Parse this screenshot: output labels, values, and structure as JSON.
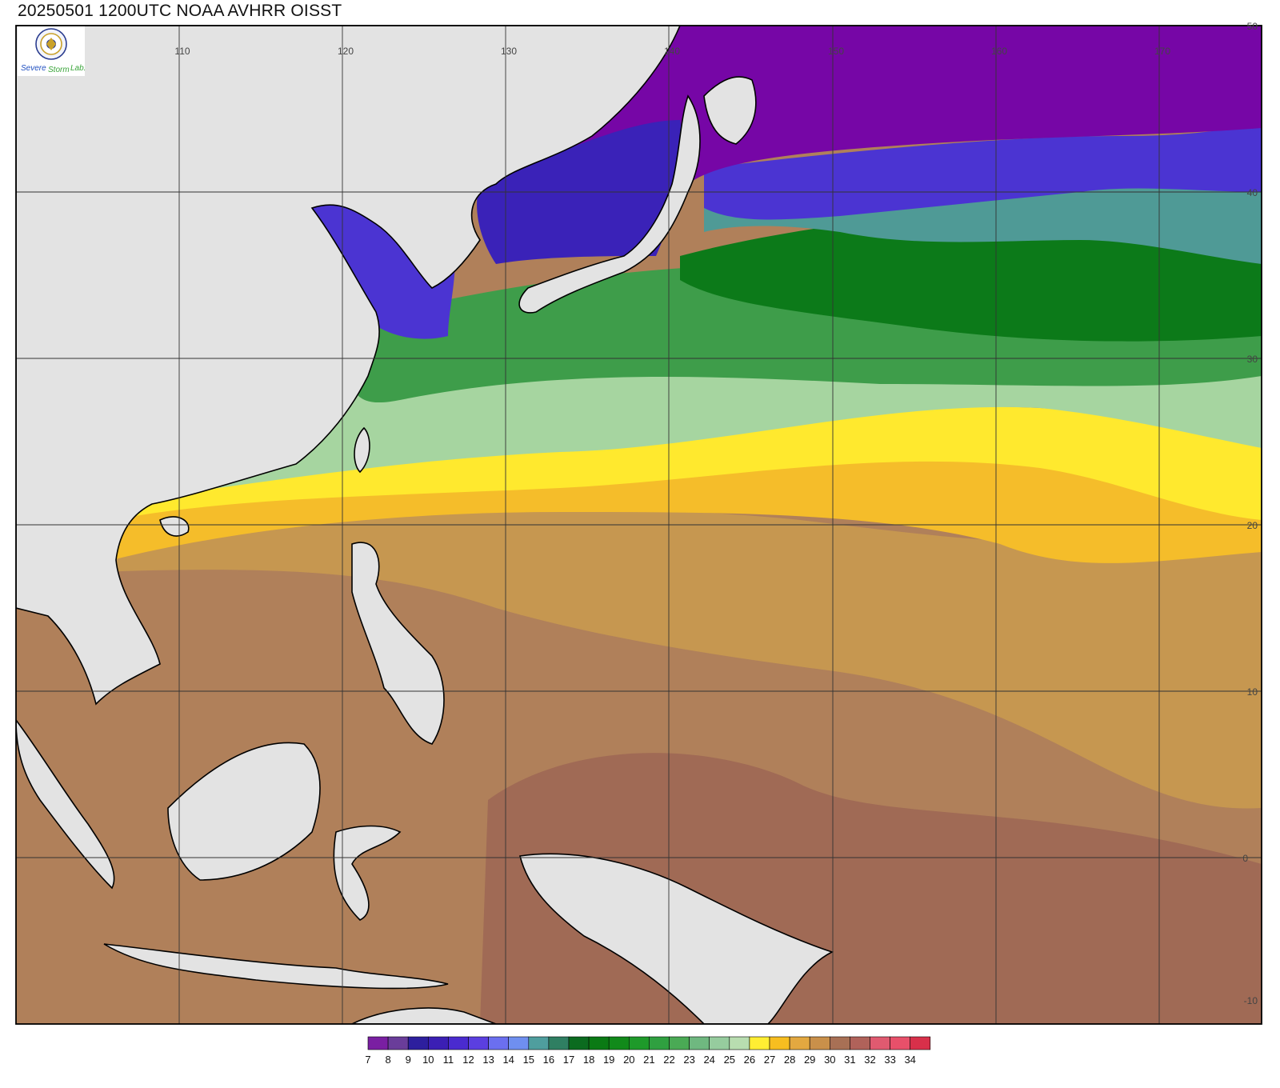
{
  "title": "20250501 1200UTC NOAA AVHRR OISST",
  "logo": {
    "name": "severe-storm-lab-logo",
    "text": "Severe Storm Lab."
  },
  "map": {
    "lon_labels": [
      "110",
      "120",
      "130",
      "140",
      "150",
      "160",
      "170"
    ],
    "lat_labels": [
      "50",
      "40",
      "30",
      "20",
      "10",
      "0",
      "-10"
    ],
    "lon_range": [
      100,
      175
    ],
    "lat_range": [
      -10,
      50
    ]
  },
  "colorbar": {
    "labels": [
      "7",
      "8",
      "9",
      "10",
      "11",
      "12",
      "13",
      "14",
      "15",
      "16",
      "17",
      "18",
      "19",
      "20",
      "21",
      "22",
      "23",
      "24",
      "25",
      "26",
      "27",
      "28",
      "29",
      "30",
      "31",
      "32",
      "33",
      "34"
    ],
    "colors": [
      "#7a1fa2",
      "#6a3d9a",
      "#2d1f9e",
      "#3b1fb4",
      "#4a2bcf",
      "#5b3fe0",
      "#6b6ff0",
      "#6f8ff0",
      "#4f9e9e",
      "#2f7f62",
      "#0b6b1f",
      "#0a7a14",
      "#118a1a",
      "#1e9a2a",
      "#2fa040",
      "#4aaa55",
      "#6fb880",
      "#96cc9e",
      "#b8ddb0",
      "#ffee33",
      "#f7be20",
      "#e3a840",
      "#c9904a",
      "#a87055",
      "#b0625a",
      "#e05a70",
      "#e8506a",
      "#d8304a"
    ]
  },
  "colors": {
    "land": "#e3e3e3",
    "grid": "#333333",
    "coast": "#000000"
  }
}
